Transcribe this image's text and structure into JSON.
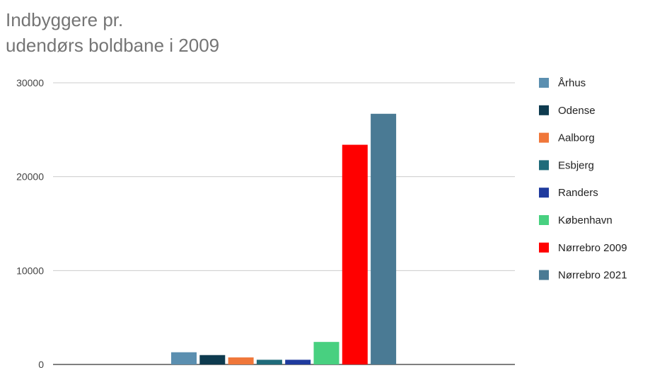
{
  "chart_data": {
    "type": "bar",
    "title_lines": [
      "Indbyggere pr.",
      "udendørs boldbane i 2009"
    ],
    "xlabel": "",
    "ylabel": "",
    "ylim": [
      0,
      30000
    ],
    "yticks": [
      0,
      10000,
      20000,
      30000
    ],
    "grid": true,
    "legend_position": "right",
    "series": [
      {
        "name": "Århus",
        "value": 1300,
        "color": "#5b8fb0"
      },
      {
        "name": "Odense",
        "value": 1000,
        "color": "#0e3b4f"
      },
      {
        "name": "Aalborg",
        "value": 750,
        "color": "#f0773a"
      },
      {
        "name": "Esbjerg",
        "value": 500,
        "color": "#1f6b7a"
      },
      {
        "name": "Randers",
        "value": 500,
        "color": "#1f3b9e"
      },
      {
        "name": "København",
        "value": 2400,
        "color": "#48d080"
      },
      {
        "name": "Nørrebro 2009",
        "value": 23400,
        "color": "#ff0000"
      },
      {
        "name": "Nørrebro 2021",
        "value": 26700,
        "color": "#4a7a94"
      }
    ]
  }
}
